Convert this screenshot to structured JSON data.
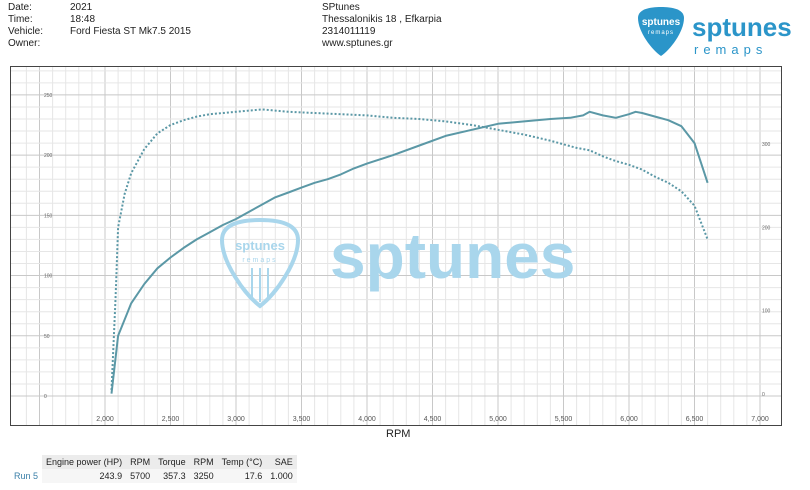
{
  "header": {
    "fields": [
      {
        "label": "Date:",
        "value": "2021"
      },
      {
        "label": "Time:",
        "value": "18:48"
      },
      {
        "label": "Vehicle:",
        "value": "Ford Fiesta ST Mk7.5 2015"
      },
      {
        "label": "Owner:",
        "value": ""
      }
    ],
    "shop": [
      "SPtunes",
      "Thessalonikis 18 , Efkarpia",
      "2314011119",
      "www.sptunes.gr"
    ]
  },
  "logo": {
    "name": "sptunes",
    "sub": "remaps",
    "badge_text": "sptunes",
    "badge_sub": "remaps"
  },
  "watermark": {
    "text": "sptunes",
    "badge_text": "sptunes",
    "badge_sub": "remaps"
  },
  "colors": {
    "curve": "#5b98a6",
    "watermark": "#a9d6ec",
    "logo": "#2b95c9"
  },
  "chart_data": {
    "type": "line",
    "xlabel": "RPM",
    "xlim": [
      2000,
      7000
    ],
    "xticks": [
      2000,
      2500,
      3000,
      3500,
      4000,
      4500,
      5000,
      5500,
      6000,
      6500,
      7000
    ],
    "xtick_labels": [
      "2,000",
      "2,500",
      "3,000",
      "3,500",
      "4,000",
      "4,500",
      "5,000",
      "5,500",
      "6,000",
      "6,500",
      "7,000"
    ],
    "y_left": {
      "lim": [
        0,
        250
      ],
      "ticks": [
        0,
        50,
        100,
        150,
        200,
        250
      ],
      "tick_labels": [
        "0",
        "50",
        "100",
        "150",
        "200",
        "250"
      ]
    },
    "y_right": {
      "lim": [
        0,
        400
      ],
      "ticks": [
        0,
        100,
        200,
        300
      ],
      "tick_labels": [
        "0",
        "100",
        "200",
        "300"
      ]
    },
    "grid": true,
    "series": [
      {
        "axis": "left",
        "style": "solid",
        "x": [
          2050,
          2100,
          2200,
          2300,
          2400,
          2500,
          2600,
          2700,
          2800,
          2900,
          3000,
          3100,
          3200,
          3300,
          3400,
          3500,
          3600,
          3700,
          3800,
          3900,
          4000,
          4200,
          4400,
          4600,
          4800,
          5000,
          5200,
          5400,
          5550,
          5650,
          5700,
          5800,
          5900,
          6000,
          6050,
          6100,
          6200,
          6300,
          6400,
          6500,
          6600
        ],
        "y": [
          2,
          50,
          77,
          93,
          106,
          115,
          123,
          130,
          136,
          142,
          147,
          153,
          159,
          165,
          169,
          173,
          177,
          180,
          184,
          189,
          193,
          200,
          208,
          216,
          221,
          226,
          228,
          230,
          231,
          233,
          236,
          233,
          231,
          234,
          236,
          235,
          232,
          229,
          224,
          210,
          177
        ]
      },
      {
        "axis": "left",
        "style": "dashed",
        "x": [
          2050,
          2080,
          2100,
          2150,
          2200,
          2300,
          2400,
          2500,
          2600,
          2700,
          2800,
          2900,
          3000,
          3100,
          3200,
          3300,
          3400,
          3600,
          3800,
          4000,
          4200,
          4400,
          4600,
          4800,
          5000,
          5200,
          5400,
          5500,
          5600,
          5700,
          5800,
          5900,
          6000,
          6100,
          6200,
          6300,
          6400,
          6500,
          6600
        ],
        "y": [
          5,
          80,
          140,
          168,
          185,
          205,
          218,
          225,
          229,
          232,
          234,
          235,
          236,
          237,
          238,
          237,
          236,
          235,
          234,
          233,
          231,
          230,
          228,
          225,
          221,
          217,
          212,
          209,
          206,
          204,
          199,
          195,
          192,
          188,
          182,
          177,
          170,
          158,
          130
        ]
      }
    ]
  },
  "results": {
    "headers": [
      "Engine power (HP)",
      "RPM",
      "Torque",
      "RPM",
      "Temp (°C)",
      "SAE"
    ],
    "rows": [
      {
        "label": "Run 5",
        "values": [
          "243.9",
          "5700",
          "357.3",
          "3250",
          "17.6",
          "1.000"
        ]
      }
    ]
  }
}
